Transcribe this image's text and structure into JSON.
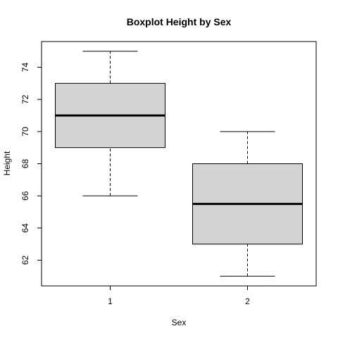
{
  "chart_data": {
    "type": "boxplot",
    "title": "Boxplot Height by Sex",
    "xlabel": "Sex",
    "ylabel": "Height",
    "categories": [
      "1",
      "2"
    ],
    "boxes": [
      {
        "category": "1",
        "min": 66,
        "q1": 69,
        "median": 71,
        "q3": 73,
        "max": 75
      },
      {
        "category": "2",
        "min": 61,
        "q1": 63,
        "median": 65.5,
        "q3": 68,
        "max": 70
      }
    ],
    "ylim": [
      60.4,
      75.6
    ],
    "yticks": [
      "62",
      "64",
      "66",
      "68",
      "70",
      "72",
      "74"
    ],
    "colors": {
      "box_fill": "#d3d3d3",
      "stroke": "#000000"
    },
    "grid": false
  }
}
